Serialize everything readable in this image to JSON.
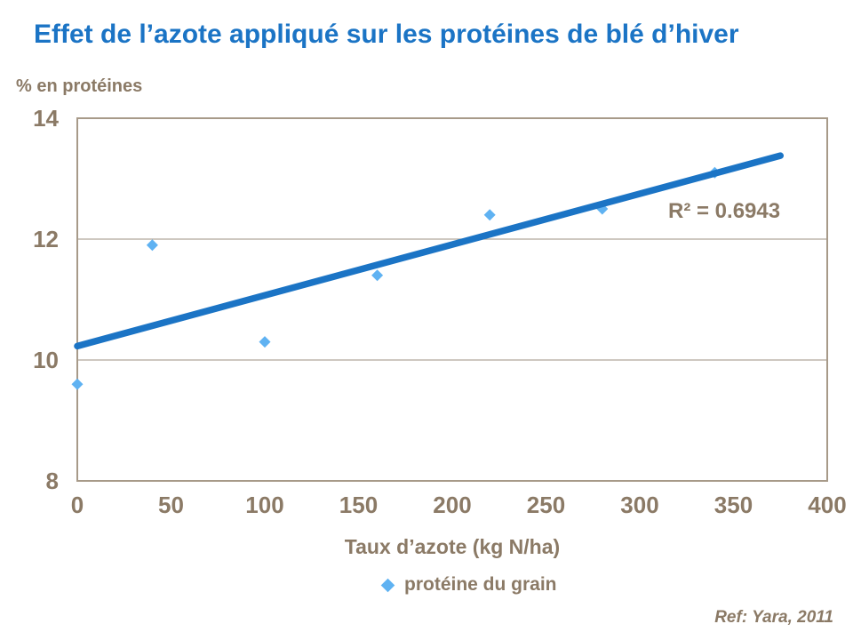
{
  "title": "Effet de l’azote appliqué sur les protéines de blé d’hiver",
  "footer": {
    "reference": "Ref: Yara, 2011"
  },
  "chart_data": {
    "type": "scatter",
    "title": "Effet de l’azote appliqué sur les protéines de blé d’hiver",
    "xlabel": "Taux d’azote (kg N/ha)",
    "ylabel": "% en protéines",
    "series_label": "protéine du grain",
    "r2_label": "R² = 0.6943",
    "r_squared": 0.6943,
    "xlim": [
      0,
      400
    ],
    "ylim": [
      8,
      14
    ],
    "xticks": [
      0,
      50,
      100,
      150,
      200,
      250,
      300,
      350,
      400
    ],
    "yticks": [
      8,
      10,
      12,
      14
    ],
    "gridlines_y": [
      10,
      12
    ],
    "grid": true,
    "legend_position": "bottom-center",
    "points": [
      {
        "x": 0,
        "y": 9.6
      },
      {
        "x": 40,
        "y": 11.9
      },
      {
        "x": 100,
        "y": 10.3
      },
      {
        "x": 160,
        "y": 11.4
      },
      {
        "x": 220,
        "y": 12.4
      },
      {
        "x": 280,
        "y": 12.5
      },
      {
        "x": 340,
        "y": 13.1
      }
    ],
    "trendline": {
      "x_start": 0,
      "y_start": 10.23,
      "x_end": 375,
      "y_end": 13.38
    },
    "colors": {
      "title_blue": "#1B74C5",
      "trend_blue": "#1B74C5",
      "point_blue": "#5FB2F2",
      "text_taupe": "#8B7A66",
      "grid_line": "#B0A79B",
      "plot_border": "#A79A89"
    }
  }
}
